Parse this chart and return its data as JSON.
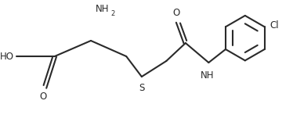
{
  "bg_color": "#ffffff",
  "line_color": "#2a2a2a",
  "line_width": 1.5,
  "font_size": 8.5,
  "sub_font_size": 6.0,
  "fig_width": 3.74,
  "fig_height": 1.47,
  "dpi": 100,
  "xlim": [
    0,
    10.5
  ],
  "ylim": [
    0,
    4.2
  ]
}
